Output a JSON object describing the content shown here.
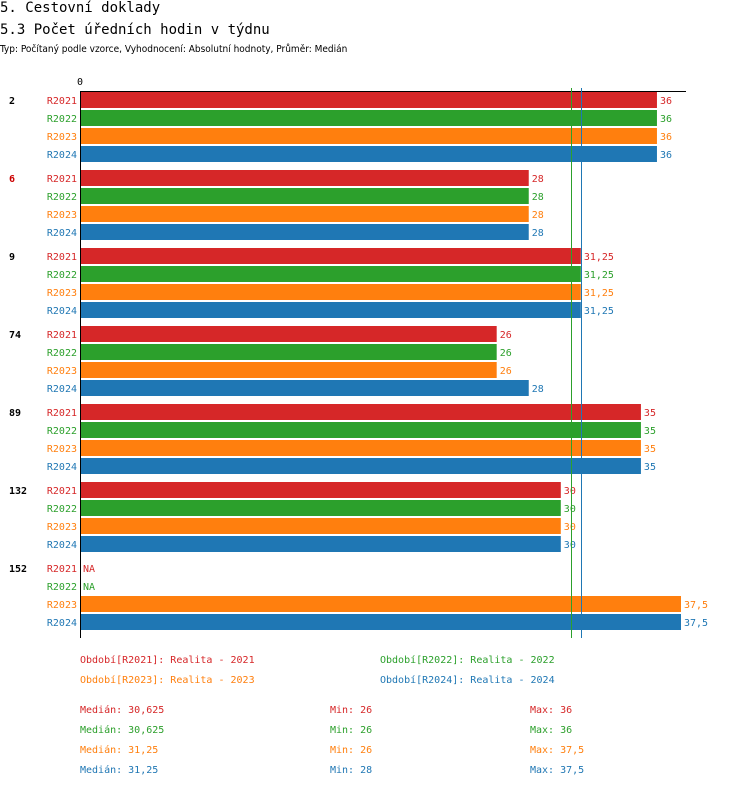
{
  "page": {
    "title": "5. Cestovní doklady",
    "subtitle": "5.3 Počet úředních hodin v týdnu",
    "description": "Typ: Počítaný podle vzorce, Vyhodnocení: Absolutní hodnoty, Průměr: Medián"
  },
  "colors": {
    "R2021": "#d62728",
    "R2022": "#2ca02c",
    "R2023": "#ff7f0e",
    "R2024": "#1f77b4",
    "highlight_group": "#cc0000"
  },
  "chart_data": {
    "type": "bar",
    "orientation": "horizontal",
    "axis_origin_label": "0",
    "xlim": [
      0,
      37.5
    ],
    "series_names": [
      "R2021",
      "R2022",
      "R2023",
      "R2024"
    ],
    "reference_lines": [
      {
        "series": "R2022",
        "value": 30.625
      },
      {
        "series": "R2024",
        "value": 31.25
      }
    ],
    "groups": [
      {
        "label": "2",
        "highlight": false,
        "bars": [
          {
            "series": "R2021",
            "value": 36,
            "label": "36"
          },
          {
            "series": "R2022",
            "value": 36,
            "label": "36"
          },
          {
            "series": "R2023",
            "value": 36,
            "label": "36"
          },
          {
            "series": "R2024",
            "value": 36,
            "label": "36"
          }
        ]
      },
      {
        "label": "6",
        "highlight": true,
        "bars": [
          {
            "series": "R2021",
            "value": 28,
            "label": "28"
          },
          {
            "series": "R2022",
            "value": 28,
            "label": "28"
          },
          {
            "series": "R2023",
            "value": 28,
            "label": "28"
          },
          {
            "series": "R2024",
            "value": 28,
            "label": "28"
          }
        ]
      },
      {
        "label": "9",
        "highlight": false,
        "bars": [
          {
            "series": "R2021",
            "value": 31.25,
            "label": "31,25"
          },
          {
            "series": "R2022",
            "value": 31.25,
            "label": "31,25"
          },
          {
            "series": "R2023",
            "value": 31.25,
            "label": "31,25"
          },
          {
            "series": "R2024",
            "value": 31.25,
            "label": "31,25"
          }
        ]
      },
      {
        "label": "74",
        "highlight": false,
        "bars": [
          {
            "series": "R2021",
            "value": 26,
            "label": "26"
          },
          {
            "series": "R2022",
            "value": 26,
            "label": "26"
          },
          {
            "series": "R2023",
            "value": 26,
            "label": "26"
          },
          {
            "series": "R2024",
            "value": 28,
            "label": "28"
          }
        ]
      },
      {
        "label": "89",
        "highlight": false,
        "bars": [
          {
            "series": "R2021",
            "value": 35,
            "label": "35"
          },
          {
            "series": "R2022",
            "value": 35,
            "label": "35"
          },
          {
            "series": "R2023",
            "value": 35,
            "label": "35"
          },
          {
            "series": "R2024",
            "value": 35,
            "label": "35"
          }
        ]
      },
      {
        "label": "132",
        "highlight": false,
        "bars": [
          {
            "series": "R2021",
            "value": 30,
            "label": "30"
          },
          {
            "series": "R2022",
            "value": 30,
            "label": "30"
          },
          {
            "series": "R2023",
            "value": 30,
            "label": "30"
          },
          {
            "series": "R2024",
            "value": 30,
            "label": "30"
          }
        ]
      },
      {
        "label": "152",
        "highlight": false,
        "bars": [
          {
            "series": "R2021",
            "value": null,
            "label": "NA"
          },
          {
            "series": "R2022",
            "value": null,
            "label": "NA"
          },
          {
            "series": "R2023",
            "value": 37.5,
            "label": "37,5"
          },
          {
            "series": "R2024",
            "value": 37.5,
            "label": "37,5"
          }
        ]
      }
    ]
  },
  "legend": [
    {
      "series": "R2021",
      "text": "Období[R2021]: Realita - 2021"
    },
    {
      "series": "R2022",
      "text": "Období[R2022]: Realita - 2022"
    },
    {
      "series": "R2023",
      "text": "Období[R2023]: Realita - 2023"
    },
    {
      "series": "R2024",
      "text": "Období[R2024]: Realita - 2024"
    }
  ],
  "stats": [
    {
      "series": "R2021",
      "median": "Medián: 30,625",
      "min": "Min: 26",
      "max": "Max: 36"
    },
    {
      "series": "R2022",
      "median": "Medián: 30,625",
      "min": "Min: 26",
      "max": "Max: 36"
    },
    {
      "series": "R2023",
      "median": "Medián: 31,25",
      "min": "Min: 26",
      "max": "Max: 37,5"
    },
    {
      "series": "R2024",
      "median": "Medián: 31,25",
      "min": "Min: 28",
      "max": "Max: 37,5"
    }
  ]
}
